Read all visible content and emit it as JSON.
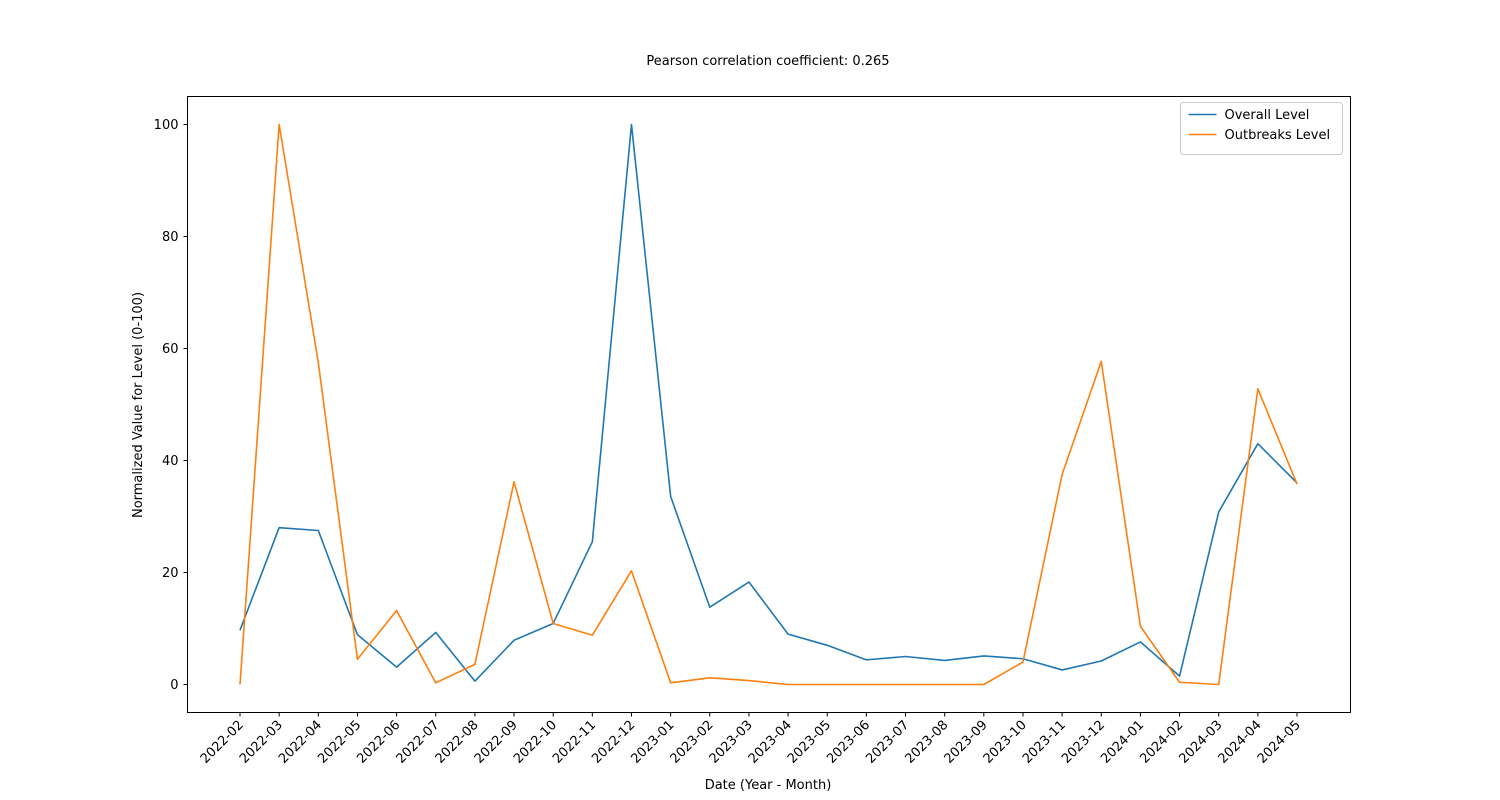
{
  "chart_data": {
    "type": "line",
    "title": "Pearson correlation coefficient: 0.265",
    "xlabel": "Date (Year - Month)",
    "ylabel": "Normalized Value for Level (0-100)",
    "ylim": [
      -5,
      105
    ],
    "yticks": [
      0,
      20,
      40,
      60,
      80,
      100
    ],
    "grid": false,
    "legend_position": "top-right",
    "x": [
      "2022-02",
      "2022-03",
      "2022-04",
      "2022-05",
      "2022-06",
      "2022-07",
      "2022-08",
      "2022-09",
      "2022-10",
      "2022-11",
      "2022-12",
      "2023-01",
      "2023-02",
      "2023-03",
      "2023-04",
      "2023-05",
      "2023-06",
      "2023-07",
      "2023-08",
      "2023-09",
      "2023-10",
      "2023-11",
      "2023-12",
      "2024-01",
      "2024-02",
      "2024-03",
      "2024-04",
      "2024-05"
    ],
    "series": [
      {
        "name": "Overall Level",
        "color": "#1f77b4",
        "values": [
          9.7,
          28.0,
          27.5,
          8.9,
          3.1,
          9.3,
          0.6,
          7.9,
          10.9,
          25.5,
          100,
          33.6,
          13.8,
          18.3,
          9.0,
          7.0,
          4.4,
          5.0,
          4.3,
          5.1,
          4.6,
          2.6,
          4.2,
          7.6,
          1.5,
          30.8,
          43.0,
          36.0
        ]
      },
      {
        "name": "Outbreaks Level",
        "color": "#ff7f0e",
        "values": [
          0,
          100,
          57.5,
          4.5,
          13.2,
          0.3,
          3.6,
          36.2,
          10.9,
          8.8,
          20.3,
          0.3,
          1.2,
          0.7,
          0,
          0,
          0,
          0,
          0,
          0,
          4.0,
          37.5,
          57.7,
          10.4,
          0.4,
          0,
          52.8,
          35.8
        ]
      }
    ]
  }
}
